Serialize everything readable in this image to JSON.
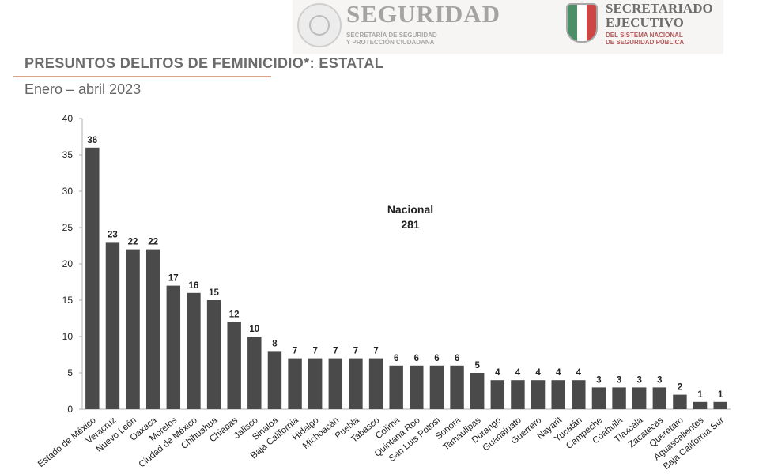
{
  "header": {
    "logo_left_title": "SEGURIDAD",
    "logo_left_subtitle_line1": "SECRETARÍA DE SEGURIDAD",
    "logo_left_subtitle_line2": "Y PROTECCIÓN CIUDADANA",
    "logo_right_title_line1": "SECRETARIADO",
    "logo_right_title_line2": "EJECUTIVO",
    "logo_right_subtitle_line1": "DEL SISTEMA NACIONAL",
    "logo_right_subtitle_line2": "DE SEGURIDAD PÚBLICA"
  },
  "colors": {
    "bar": "#4a4a4a",
    "rule": "#d9a58f"
  },
  "chart_data": {
    "type": "bar",
    "title": "PRESUNTOS DELITOS DE FEMINICIDIO*: ESTATAL",
    "subtitle": "Enero – abril 2023",
    "annotation": [
      "Nacional",
      "281"
    ],
    "categories": [
      "Estado de México",
      "Veracruz",
      "Nuevo León",
      "Oaxaca",
      "Morelos",
      "Ciudad de México",
      "Chihuahua",
      "Chiapas",
      "Jalisco",
      "Sinaloa",
      "Baja California",
      "Hidalgo",
      "Michoacán",
      "Puebla",
      "Tabasco",
      "Colima",
      "Quintana Roo",
      "San Luis Potosí",
      "Sonora",
      "Tamaulipas",
      "Durango",
      "Guanajuato",
      "Guerrero",
      "Nayarit",
      "Yucatán",
      "Campeche",
      "Coahuila",
      "Tlaxcala",
      "Zacatecas",
      "Querétaro",
      "Aguascalientes",
      "Baja California Sur"
    ],
    "values": [
      36,
      23,
      22,
      22,
      17,
      16,
      15,
      12,
      10,
      8,
      7,
      7,
      7,
      7,
      7,
      6,
      6,
      6,
      6,
      5,
      4,
      4,
      4,
      4,
      4,
      3,
      3,
      3,
      3,
      2,
      1,
      1
    ],
    "ylim": [
      0,
      40
    ],
    "yticks": [
      0,
      5,
      10,
      15,
      20,
      25,
      30,
      35,
      40
    ],
    "grid": false,
    "xlabel": "",
    "ylabel": ""
  }
}
